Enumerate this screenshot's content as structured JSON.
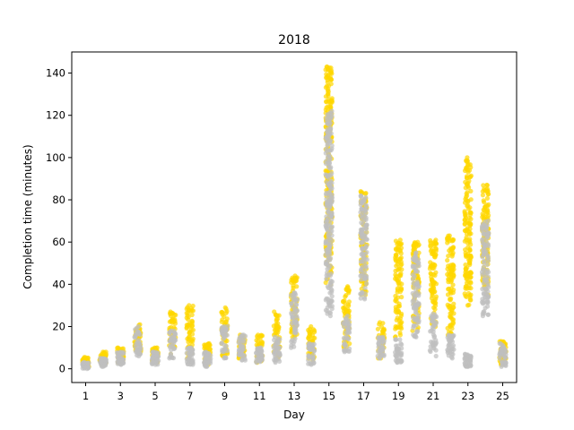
{
  "chart_data": {
    "type": "scatter",
    "title": "2018",
    "xlabel": "Day",
    "ylabel": "Completion time (minutes)",
    "xlim": [
      0.2,
      25.8
    ],
    "ylim": [
      -6.5,
      150
    ],
    "xticks": [
      1,
      3,
      5,
      7,
      9,
      11,
      13,
      15,
      17,
      19,
      21,
      23,
      25
    ],
    "yticks": [
      0,
      20,
      40,
      60,
      80,
      100,
      120,
      140
    ],
    "grid": false,
    "legend": "none",
    "series": [
      {
        "color": "#FFD700",
        "days": [
          {
            "day": 1,
            "min": 1,
            "max": 5.5
          },
          {
            "day": 2,
            "min": 2,
            "max": 8
          },
          {
            "day": 3,
            "min": 3,
            "max": 10
          },
          {
            "day": 4,
            "min": 8,
            "max": 21
          },
          {
            "day": 5,
            "min": 3,
            "max": 10
          },
          {
            "day": 6,
            "min": 7,
            "max": 27
          },
          {
            "day": 7,
            "min": 5,
            "max": 30
          },
          {
            "day": 8,
            "min": 2,
            "max": 12
          },
          {
            "day": 9,
            "min": 6,
            "max": 29
          },
          {
            "day": 10,
            "min": 5,
            "max": 16
          },
          {
            "day": 11,
            "min": 3,
            "max": 16
          },
          {
            "day": 12,
            "min": 5,
            "max": 27
          },
          {
            "day": 13,
            "min": 15,
            "max": 44
          },
          {
            "day": 14,
            "min": 4,
            "max": 20
          },
          {
            "day": 15,
            "min": 40,
            "max": 143
          },
          {
            "day": 16,
            "min": 10,
            "max": 39
          },
          {
            "day": 17,
            "min": 35,
            "max": 84
          },
          {
            "day": 18,
            "min": 5,
            "max": 22
          },
          {
            "day": 19,
            "min": 15,
            "max": 61
          },
          {
            "day": 20,
            "min": 18,
            "max": 60
          },
          {
            "day": 21,
            "min": 20,
            "max": 61
          },
          {
            "day": 22,
            "min": 15,
            "max": 63
          },
          {
            "day": 23,
            "min": 30,
            "max": 100
          },
          {
            "day": 24,
            "min": 35,
            "max": 87
          },
          {
            "day": 25,
            "min": 2,
            "max": 13
          }
        ]
      },
      {
        "color": "#BFBFBF",
        "days": [
          {
            "day": 1,
            "min": 0,
            "max": 3
          },
          {
            "day": 2,
            "min": 1,
            "max": 5
          },
          {
            "day": 3,
            "min": 2,
            "max": 8
          },
          {
            "day": 4,
            "min": 6,
            "max": 20
          },
          {
            "day": 5,
            "min": 2,
            "max": 8
          },
          {
            "day": 6,
            "min": 5,
            "max": 18
          },
          {
            "day": 7,
            "min": 2,
            "max": 10
          },
          {
            "day": 8,
            "min": 1,
            "max": 8
          },
          {
            "day": 9,
            "min": 5,
            "max": 20
          },
          {
            "day": 10,
            "min": 4,
            "max": 16
          },
          {
            "day": 11,
            "min": 3,
            "max": 10
          },
          {
            "day": 12,
            "min": 3,
            "max": 15
          },
          {
            "day": 13,
            "min": 10,
            "max": 36
          },
          {
            "day": 14,
            "min": 2,
            "max": 12
          },
          {
            "day": 15,
            "min": 25,
            "max": 122
          },
          {
            "day": 16,
            "min": 8,
            "max": 25
          },
          {
            "day": 17,
            "min": 33,
            "max": 82
          },
          {
            "day": 18,
            "min": 5,
            "max": 15
          },
          {
            "day": 19,
            "min": 3,
            "max": 14
          },
          {
            "day": 20,
            "min": 15,
            "max": 55
          },
          {
            "day": 21,
            "min": 6,
            "max": 26
          },
          {
            "day": 22,
            "min": 5,
            "max": 16
          },
          {
            "day": 23,
            "min": 1,
            "max": 7
          },
          {
            "day": 24,
            "min": 25,
            "max": 70
          },
          {
            "day": 25,
            "min": 1,
            "max": 12
          }
        ]
      }
    ]
  }
}
